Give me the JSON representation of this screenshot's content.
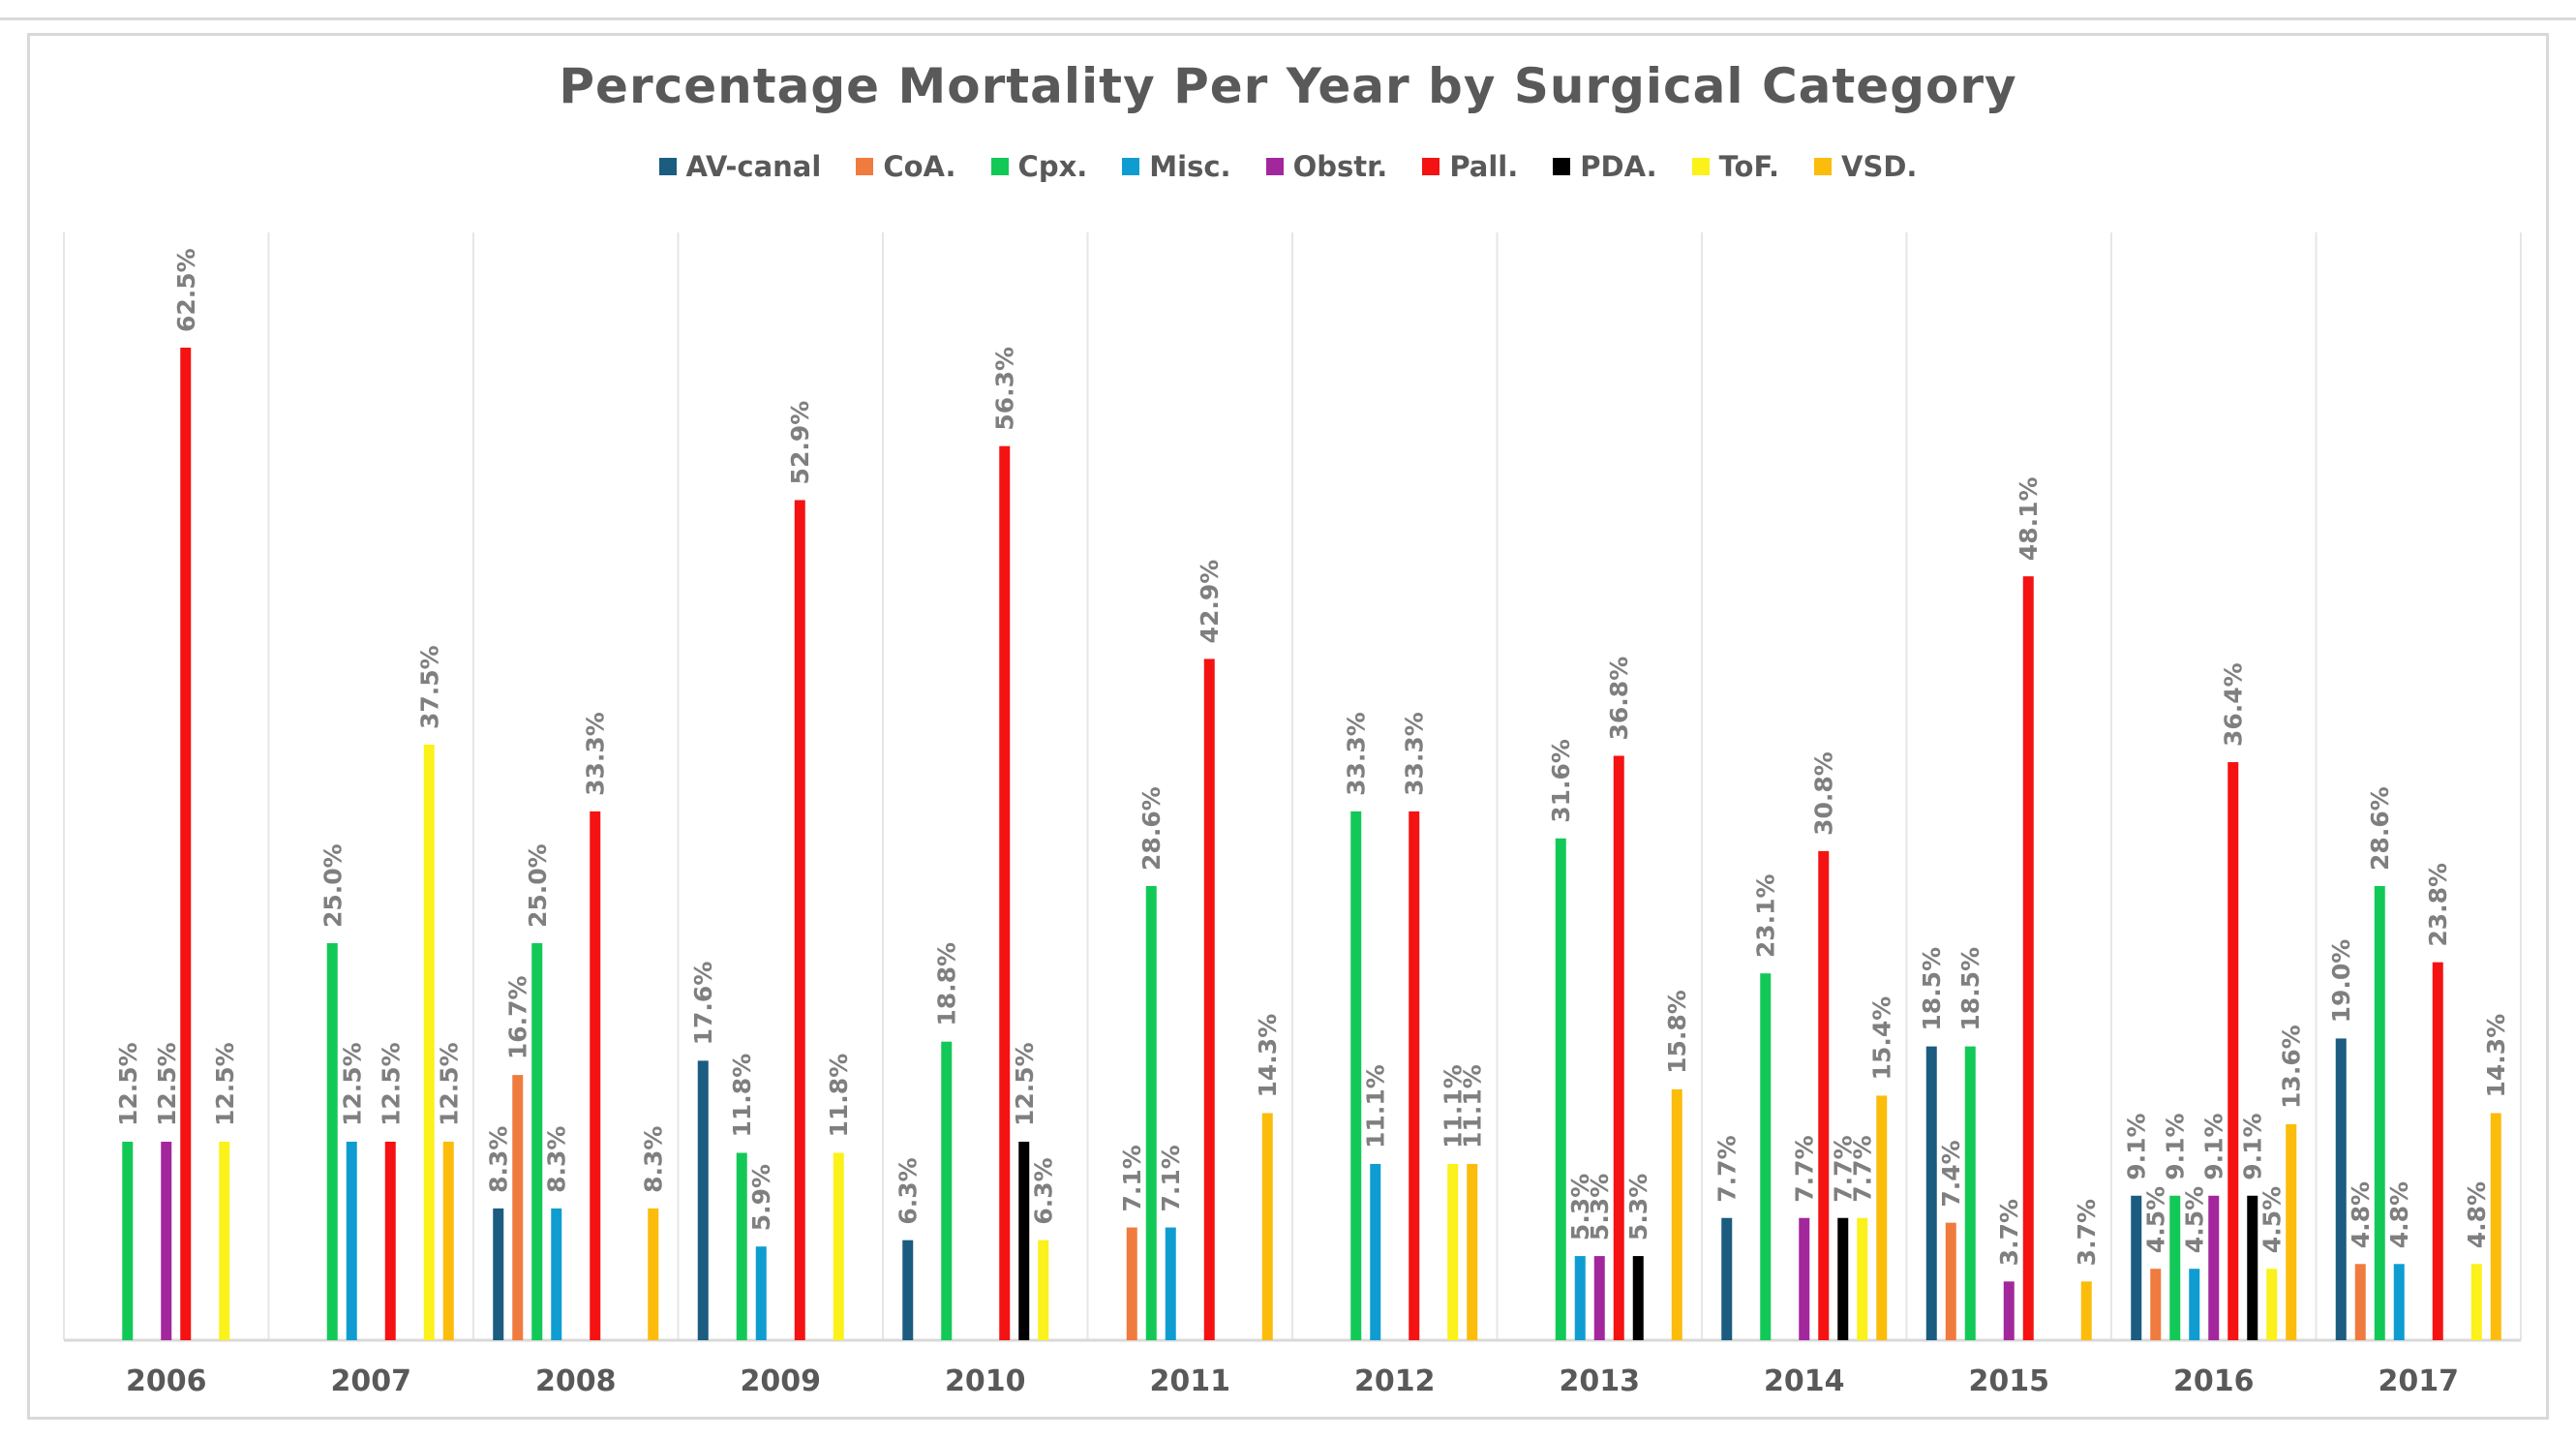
{
  "chart_data": {
    "type": "bar",
    "title": "Percentage Mortality Per Year by Surgical Category",
    "xlabel": "",
    "ylabel": "",
    "ylim": [
      0,
      70
    ],
    "grid": false,
    "legend_position": "top",
    "categories": [
      "2006",
      "2007",
      "2008",
      "2009",
      "2010",
      "2011",
      "2012",
      "2013",
      "2014",
      "2015",
      "2016",
      "2017"
    ],
    "series": [
      {
        "name": "AV-canal",
        "color": "#1b5c80",
        "values": [
          null,
          null,
          8.3,
          17.6,
          6.3,
          null,
          null,
          null,
          7.7,
          18.5,
          9.1,
          19.0
        ]
      },
      {
        "name": "CoA.",
        "color": "#f07b3f",
        "values": [
          null,
          null,
          16.7,
          null,
          null,
          7.1,
          null,
          null,
          null,
          7.4,
          4.5,
          4.8
        ]
      },
      {
        "name": "Cpx.",
        "color": "#12c957",
        "values": [
          12.5,
          25.0,
          25.0,
          11.8,
          18.8,
          28.6,
          33.3,
          31.6,
          23.1,
          18.5,
          9.1,
          28.6
        ]
      },
      {
        "name": "Misc.",
        "color": "#0f9dd1",
        "values": [
          null,
          12.5,
          8.3,
          5.9,
          null,
          7.1,
          11.1,
          5.3,
          null,
          null,
          4.5,
          4.8
        ]
      },
      {
        "name": "Obstr.",
        "color": "#a3279c",
        "values": [
          12.5,
          null,
          null,
          null,
          null,
          null,
          null,
          5.3,
          7.7,
          3.7,
          9.1,
          null
        ]
      },
      {
        "name": "Pall.",
        "color": "#f41212",
        "values": [
          62.5,
          12.5,
          33.3,
          52.9,
          56.3,
          42.9,
          33.3,
          36.8,
          30.8,
          48.1,
          36.4,
          23.8
        ]
      },
      {
        "name": "PDA.",
        "color": "#000000",
        "values": [
          null,
          null,
          null,
          null,
          12.5,
          null,
          null,
          5.3,
          7.7,
          null,
          9.1,
          null
        ]
      },
      {
        "name": "ToF.",
        "color": "#fbf11b",
        "values": [
          12.5,
          37.5,
          null,
          11.8,
          6.3,
          null,
          11.1,
          null,
          7.7,
          null,
          4.5,
          4.8
        ]
      },
      {
        "name": "VSD.",
        "color": "#fbbc0c",
        "values": [
          null,
          12.5,
          8.3,
          null,
          null,
          14.3,
          11.1,
          15.8,
          15.4,
          3.7,
          13.6,
          14.3
        ]
      }
    ]
  }
}
